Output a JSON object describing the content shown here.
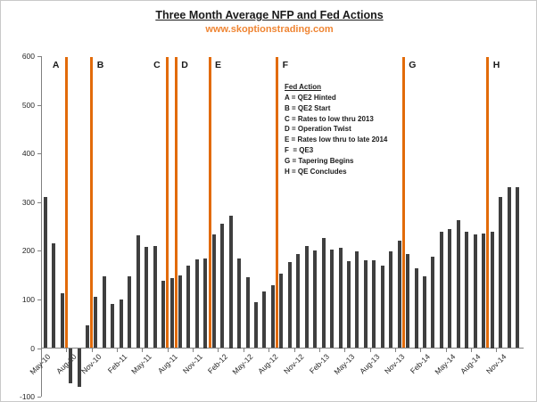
{
  "title": "Three Month Average NFP and Fed Actions",
  "subtitle": "www.skoptionstrading.com",
  "colors": {
    "accent_orange": "#E26B0A",
    "subtitle_orange": "#EF8533",
    "bar_gray": "#3F3F3F",
    "axis_gray": "#808080",
    "text_dark": "#262626"
  },
  "legend": {
    "heading": "Fed Action",
    "items": [
      "A = QE2 Hinted",
      "B = QE2 Start",
      "C = Rates to low thru 2013",
      "D = Operation Twist",
      "E = Rates low thru to late 2014",
      "F  = QE3",
      "G = Tapering Begins",
      "H = QE Concludes"
    ]
  },
  "chart_data": {
    "type": "bar",
    "title": "Three Month Average NFP and Fed Actions",
    "xlabel": "",
    "ylabel": "",
    "ylim": [
      -100,
      600
    ],
    "ytick_interval": 100,
    "grid": false,
    "x": [
      "May-10",
      "Jun-10",
      "Jul-10",
      "Aug-10",
      "Sep-10",
      "Oct-10",
      "Nov-10",
      "Dec-10",
      "Jan-11",
      "Feb-11",
      "Mar-11",
      "Apr-11",
      "May-11",
      "Jun-11",
      "Jul-11",
      "Aug-11",
      "Sep-11",
      "Oct-11",
      "Nov-11",
      "Dec-11",
      "Jan-12",
      "Feb-12",
      "Mar-12",
      "Apr-12",
      "May-12",
      "Jun-12",
      "Jul-12",
      "Aug-12",
      "Sep-12",
      "Oct-12",
      "Nov-12",
      "Dec-12",
      "Jan-13",
      "Feb-13",
      "Mar-13",
      "Apr-13",
      "May-13",
      "Jun-13",
      "Jul-13",
      "Aug-13",
      "Sep-13",
      "Oct-13",
      "Nov-13",
      "Dec-13",
      "Jan-14",
      "Feb-14",
      "Mar-14",
      "Apr-14",
      "May-14",
      "Jun-14",
      "Jul-14",
      "Aug-14",
      "Sep-14",
      "Oct-14",
      "Nov-14",
      "Dec-14",
      "Jan-15"
    ],
    "values": [
      310,
      215,
      113,
      -72,
      -80,
      47,
      105,
      148,
      90,
      100,
      148,
      232,
      208,
      209,
      139,
      144,
      150,
      170,
      182,
      184,
      234,
      256,
      272,
      184,
      146,
      95,
      116,
      129,
      153,
      176,
      193,
      210,
      201,
      227,
      202,
      206,
      179,
      198,
      180,
      180,
      169,
      198,
      221,
      194,
      164,
      147,
      188,
      240,
      244,
      262,
      239,
      233,
      236,
      239,
      310,
      331,
      331
    ],
    "xtick_label_every": 3,
    "events": [
      {
        "label": "A",
        "after_index": 2,
        "label_side": "left",
        "meaning": "QE2 Hinted"
      },
      {
        "label": "B",
        "after_index": 5,
        "label_side": "right",
        "meaning": "QE2 Start"
      },
      {
        "label": "C",
        "after_index": 14,
        "label_side": "left",
        "meaning": "Rates to low thru 2013"
      },
      {
        "label": "D",
        "after_index": 15,
        "label_side": "right",
        "meaning": "Operation Twist"
      },
      {
        "label": "E",
        "after_index": 19,
        "label_side": "right",
        "meaning": "Rates low thru to late 2014"
      },
      {
        "label": "F",
        "after_index": 27,
        "label_side": "right",
        "meaning": "QE3"
      },
      {
        "label": "G",
        "after_index": 42,
        "label_side": "right",
        "meaning": "Tapering Begins"
      },
      {
        "label": "H",
        "after_index": 52,
        "label_side": "right",
        "meaning": "QE Concludes"
      }
    ]
  }
}
